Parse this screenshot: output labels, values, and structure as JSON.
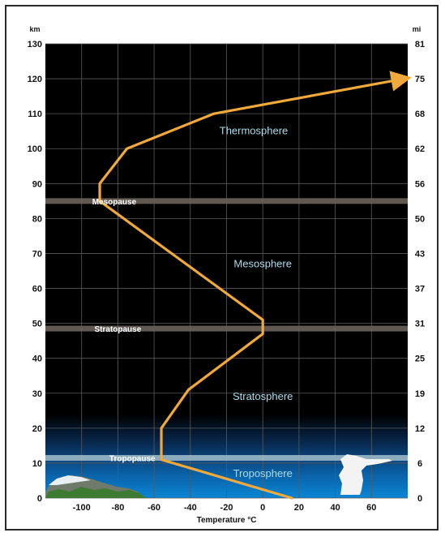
{
  "chart_data": {
    "type": "line",
    "title": "",
    "xlabel": "Temperature °C",
    "ylabel": "km",
    "y2label": "mi",
    "xlim": [
      -120,
      80
    ],
    "ylim": [
      0,
      130
    ],
    "x_ticks": [
      -100,
      -80,
      -60,
      -40,
      -20,
      0,
      20,
      40,
      60
    ],
    "y_ticks": [
      0,
      10,
      20,
      30,
      40,
      50,
      60,
      70,
      80,
      90,
      100,
      110,
      120,
      130
    ],
    "y2_ticks": [
      "0",
      "6",
      "12",
      "19",
      "25",
      "31",
      "37",
      "43",
      "50",
      "56",
      "62",
      "68",
      "75",
      "81"
    ],
    "grid": true,
    "series": [
      {
        "x": [
          16,
          -56,
          -56,
          -41,
          0,
          0,
          -90,
          -90,
          -75,
          -27,
          78
        ],
        "y": [
          0,
          11,
          20,
          31,
          47,
          51,
          85,
          90,
          100,
          110,
          120
        ],
        "color": "#f2a93b",
        "end_arrow": true
      }
    ],
    "layers": [
      {
        "label": "Thermosphere",
        "x": -5,
        "y": 105
      },
      {
        "label": "Mesosphere",
        "x": 0,
        "y": 67
      },
      {
        "label": "Stratosphere",
        "x": 0,
        "y": 29
      },
      {
        "label": "Troposphere",
        "x": 0,
        "y": 7
      }
    ],
    "boundaries": [
      {
        "label": "Mesopause",
        "y": 85,
        "label_x": -82
      },
      {
        "label": "Stratopause",
        "y": 48.5,
        "label_x": -80
      },
      {
        "label": "Tropopause",
        "y": 11.5,
        "label_x": -72
      }
    ],
    "colors": {
      "sky": "#000000",
      "ground_blue": "#0a86d4",
      "boundary_band": "#6b625b",
      "tropopause_band": "#9bb7c5",
      "grid": "#5a5a5a",
      "line": "#f2a93b"
    }
  }
}
